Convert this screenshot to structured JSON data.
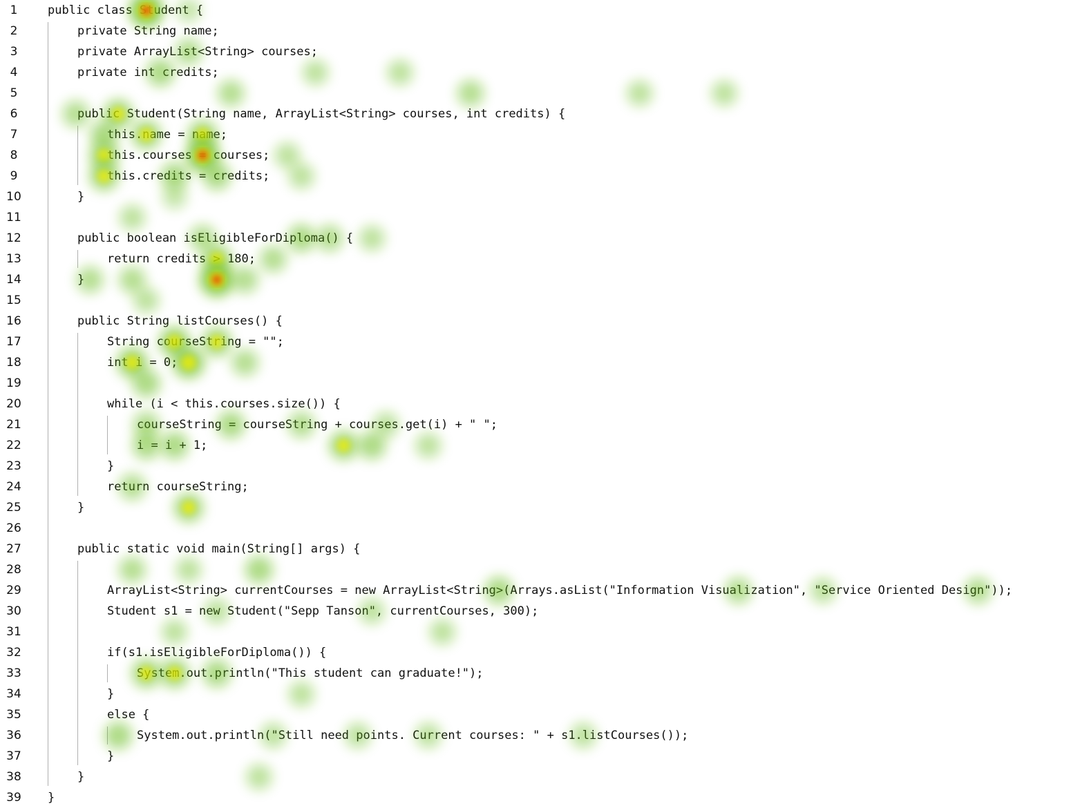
{
  "editor": {
    "lines": [
      {
        "n": "1",
        "indent": 0,
        "text": "public class Student {"
      },
      {
        "n": "2",
        "indent": 1,
        "text": "private String name;"
      },
      {
        "n": "3",
        "indent": 1,
        "text": "private ArrayList<String> courses;"
      },
      {
        "n": "4",
        "indent": 1,
        "text": "private int credits;"
      },
      {
        "n": "5",
        "indent": 0,
        "text": ""
      },
      {
        "n": "6",
        "indent": 1,
        "text": "public Student(String name, ArrayList<String> courses, int credits) {"
      },
      {
        "n": "7",
        "indent": 2,
        "text": "this.name = name;"
      },
      {
        "n": "8",
        "indent": 2,
        "text": "this.courses = courses;"
      },
      {
        "n": "9",
        "indent": 2,
        "text": "this.credits = credits;"
      },
      {
        "n": "10",
        "indent": 1,
        "text": "}"
      },
      {
        "n": "11",
        "indent": 0,
        "text": ""
      },
      {
        "n": "12",
        "indent": 1,
        "text": "public boolean isEligibleForDiploma() {"
      },
      {
        "n": "13",
        "indent": 2,
        "text": "return credits > 180;"
      },
      {
        "n": "14",
        "indent": 1,
        "text": "}"
      },
      {
        "n": "15",
        "indent": 0,
        "text": ""
      },
      {
        "n": "16",
        "indent": 1,
        "text": "public String listCourses() {"
      },
      {
        "n": "17",
        "indent": 2,
        "text": "String courseString = \"\";"
      },
      {
        "n": "18",
        "indent": 2,
        "text": "int i = 0;"
      },
      {
        "n": "19",
        "indent": 0,
        "text": ""
      },
      {
        "n": "20",
        "indent": 2,
        "text": "while (i < this.courses.size()) {"
      },
      {
        "n": "21",
        "indent": 3,
        "text": "courseString = courseString + courses.get(i) + \" \";"
      },
      {
        "n": "22",
        "indent": 3,
        "text": "i = i + 1;"
      },
      {
        "n": "23",
        "indent": 2,
        "text": "}"
      },
      {
        "n": "24",
        "indent": 2,
        "text": "return courseString;"
      },
      {
        "n": "25",
        "indent": 1,
        "text": "}"
      },
      {
        "n": "26",
        "indent": 0,
        "text": ""
      },
      {
        "n": "27",
        "indent": 1,
        "text": "public static void main(String[] args) {"
      },
      {
        "n": "28",
        "indent": 0,
        "text": ""
      },
      {
        "n": "29",
        "indent": 2,
        "text": "ArrayList<String> currentCourses = new ArrayList<String>(Arrays.asList(\"Information Visualization\", \"Service Oriented Design\"));"
      },
      {
        "n": "30",
        "indent": 2,
        "text": "Student s1 = new Student(\"Sepp Tanson\", currentCourses, 300);"
      },
      {
        "n": "31",
        "indent": 0,
        "text": ""
      },
      {
        "n": "32",
        "indent": 2,
        "text": "if(s1.isEligibleForDiploma()) {"
      },
      {
        "n": "33",
        "indent": 3,
        "text": "System.out.println(\"This student can graduate!\");"
      },
      {
        "n": "34",
        "indent": 2,
        "text": "}"
      },
      {
        "n": "35",
        "indent": 2,
        "text": "else {"
      },
      {
        "n": "36",
        "indent": 3,
        "text": "System.out.println(\"Still need points. Current courses: \" + s1.listCourses());"
      },
      {
        "n": "37",
        "indent": 2,
        "text": "}"
      },
      {
        "n": "38",
        "indent": 1,
        "text": "}"
      },
      {
        "n": "39",
        "indent": 0,
        "text": "}"
      }
    ]
  },
  "heatmap": {
    "colors": {
      "low": "#5fb80a",
      "mid": "#f2ef00",
      "high": "#e80000"
    },
    "fixations": [
      {
        "line": 1,
        "col": 7,
        "w": 1.0
      },
      {
        "line": 1,
        "col": 10,
        "w": 0.2
      },
      {
        "line": 3,
        "col": 10,
        "w": 0.4
      },
      {
        "line": 4,
        "col": 8,
        "w": 0.5
      },
      {
        "line": 5,
        "col": 13,
        "w": 0.4
      },
      {
        "line": 4,
        "col": 19,
        "w": 0.3
      },
      {
        "line": 4,
        "col": 25,
        "w": 0.3
      },
      {
        "line": 5,
        "col": 30,
        "w": 0.4
      },
      {
        "line": 5,
        "col": 42,
        "w": 0.3
      },
      {
        "line": 5,
        "col": 48,
        "w": 0.3
      },
      {
        "line": 6,
        "col": 2,
        "w": 0.4
      },
      {
        "line": 6,
        "col": 5,
        "w": 0.6
      },
      {
        "line": 7,
        "col": 4,
        "w": 0.5
      },
      {
        "line": 7,
        "col": 7,
        "w": 0.6
      },
      {
        "line": 7,
        "col": 11,
        "w": 0.6
      },
      {
        "line": 8,
        "col": 4,
        "w": 0.6
      },
      {
        "line": 8,
        "col": 11,
        "w": 0.95
      },
      {
        "line": 8,
        "col": 17,
        "w": 0.3
      },
      {
        "line": 9,
        "col": 4,
        "w": 0.6
      },
      {
        "line": 9,
        "col": 9,
        "w": 0.5
      },
      {
        "line": 9,
        "col": 12,
        "w": 0.5
      },
      {
        "line": 9,
        "col": 18,
        "w": 0.3
      },
      {
        "line": 10,
        "col": 9,
        "w": 0.2
      },
      {
        "line": 11,
        "col": 6,
        "w": 0.3
      },
      {
        "line": 12,
        "col": 11,
        "w": 0.4
      },
      {
        "line": 12,
        "col": 18,
        "w": 0.5
      },
      {
        "line": 12,
        "col": 20,
        "w": 0.4
      },
      {
        "line": 12,
        "col": 23,
        "w": 0.3
      },
      {
        "line": 13,
        "col": 12,
        "w": 0.6
      },
      {
        "line": 13,
        "col": 16,
        "w": 0.4
      },
      {
        "line": 14,
        "col": 6,
        "w": 0.4
      },
      {
        "line": 14,
        "col": 12,
        "w": 1.0
      },
      {
        "line": 14,
        "col": 3,
        "w": 0.4
      },
      {
        "line": 14,
        "col": 14,
        "w": 0.4
      },
      {
        "line": 15,
        "col": 7,
        "w": 0.3
      },
      {
        "line": 17,
        "col": 9,
        "w": 0.7
      },
      {
        "line": 17,
        "col": 12,
        "w": 0.6
      },
      {
        "line": 18,
        "col": 6,
        "w": 0.7
      },
      {
        "line": 18,
        "col": 10,
        "w": 0.8
      },
      {
        "line": 18,
        "col": 14,
        "w": 0.4
      },
      {
        "line": 19,
        "col": 7,
        "w": 0.5
      },
      {
        "line": 21,
        "col": 7,
        "w": 0.4
      },
      {
        "line": 21,
        "col": 13,
        "w": 0.5
      },
      {
        "line": 21,
        "col": 18,
        "w": 0.4
      },
      {
        "line": 21,
        "col": 24,
        "w": 0.3
      },
      {
        "line": 22,
        "col": 7,
        "w": 0.5
      },
      {
        "line": 22,
        "col": 9,
        "w": 0.5
      },
      {
        "line": 22,
        "col": 21,
        "w": 0.6
      },
      {
        "line": 22,
        "col": 23,
        "w": 0.5
      },
      {
        "line": 22,
        "col": 27,
        "w": 0.3
      },
      {
        "line": 24,
        "col": 6,
        "w": 0.4
      },
      {
        "line": 25,
        "col": 10,
        "w": 0.6
      },
      {
        "line": 28,
        "col": 6,
        "w": 0.4
      },
      {
        "line": 28,
        "col": 10,
        "w": 0.3
      },
      {
        "line": 28,
        "col": 15,
        "w": 0.5
      },
      {
        "line": 29,
        "col": 32,
        "w": 0.5
      },
      {
        "line": 29,
        "col": 49,
        "w": 0.4
      },
      {
        "line": 29,
        "col": 55,
        "w": 0.3
      },
      {
        "line": 29,
        "col": 66,
        "w": 0.4
      },
      {
        "line": 29,
        "col": 74,
        "w": 0.4
      },
      {
        "line": 30,
        "col": 12,
        "w": 0.3
      },
      {
        "line": 30,
        "col": 23,
        "w": 0.3
      },
      {
        "line": 31,
        "col": 9,
        "w": 0.3
      },
      {
        "line": 31,
        "col": 28,
        "w": 0.3
      },
      {
        "line": 33,
        "col": 7,
        "w": 0.6
      },
      {
        "line": 33,
        "col": 9,
        "w": 0.6
      },
      {
        "line": 33,
        "col": 12,
        "w": 0.5
      },
      {
        "line": 34,
        "col": 18,
        "w": 0.3
      },
      {
        "line": 36,
        "col": 5,
        "w": 0.5
      },
      {
        "line": 36,
        "col": 16,
        "w": 0.3
      },
      {
        "line": 36,
        "col": 22,
        "w": 0.3
      },
      {
        "line": 36,
        "col": 27,
        "w": 0.3
      },
      {
        "line": 36,
        "col": 38,
        "w": 0.3
      },
      {
        "line": 38,
        "col": 15,
        "w": 0.3
      }
    ]
  }
}
